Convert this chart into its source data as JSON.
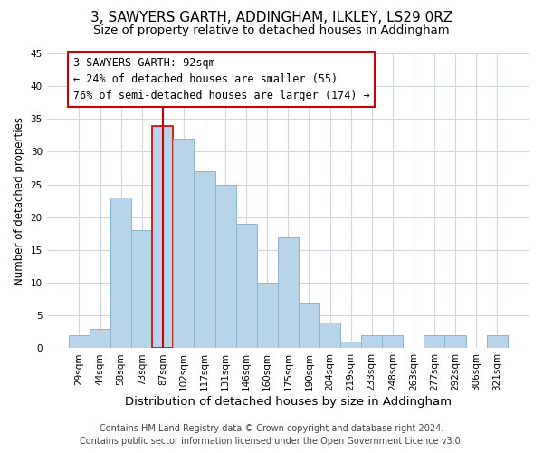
{
  "title": "3, SAWYERS GARTH, ADDINGHAM, ILKLEY, LS29 0RZ",
  "subtitle": "Size of property relative to detached houses in Addingham",
  "xlabel": "Distribution of detached houses by size in Addingham",
  "ylabel": "Number of detached properties",
  "bar_labels": [
    "29sqm",
    "44sqm",
    "58sqm",
    "73sqm",
    "87sqm",
    "102sqm",
    "117sqm",
    "131sqm",
    "146sqm",
    "160sqm",
    "175sqm",
    "190sqm",
    "204sqm",
    "219sqm",
    "233sqm",
    "248sqm",
    "263sqm",
    "277sqm",
    "292sqm",
    "306sqm",
    "321sqm"
  ],
  "bar_values": [
    2,
    3,
    23,
    18,
    34,
    32,
    27,
    25,
    19,
    10,
    17,
    7,
    4,
    1,
    2,
    2,
    0,
    2,
    2,
    0,
    2
  ],
  "bar_color": "#b8d4e8",
  "bar_edge_color": "#8ab4d0",
  "highlight_index": 4,
  "vline_color": "#cc0000",
  "vline_x_offset": 0.0,
  "ylim": [
    0,
    45
  ],
  "yticks": [
    0,
    5,
    10,
    15,
    20,
    25,
    30,
    35,
    40,
    45
  ],
  "annotation_line1": "3 SAWYERS GARTH: 92sqm",
  "annotation_line2": "← 24% of detached houses are smaller (55)",
  "annotation_line3": "76% of semi-detached houses are larger (174) →",
  "annotation_box_color": "#ffffff",
  "annotation_box_edge": "#cc0000",
  "footer_line1": "Contains HM Land Registry data © Crown copyright and database right 2024.",
  "footer_line2": "Contains public sector information licensed under the Open Government Licence v3.0.",
  "background_color": "#ffffff",
  "grid_color": "#ccd8e8",
  "title_fontsize": 11,
  "subtitle_fontsize": 9.5,
  "xlabel_fontsize": 9.5,
  "ylabel_fontsize": 8.5,
  "tick_fontsize": 7.5,
  "annotation_fontsize": 8.5,
  "footer_fontsize": 7
}
